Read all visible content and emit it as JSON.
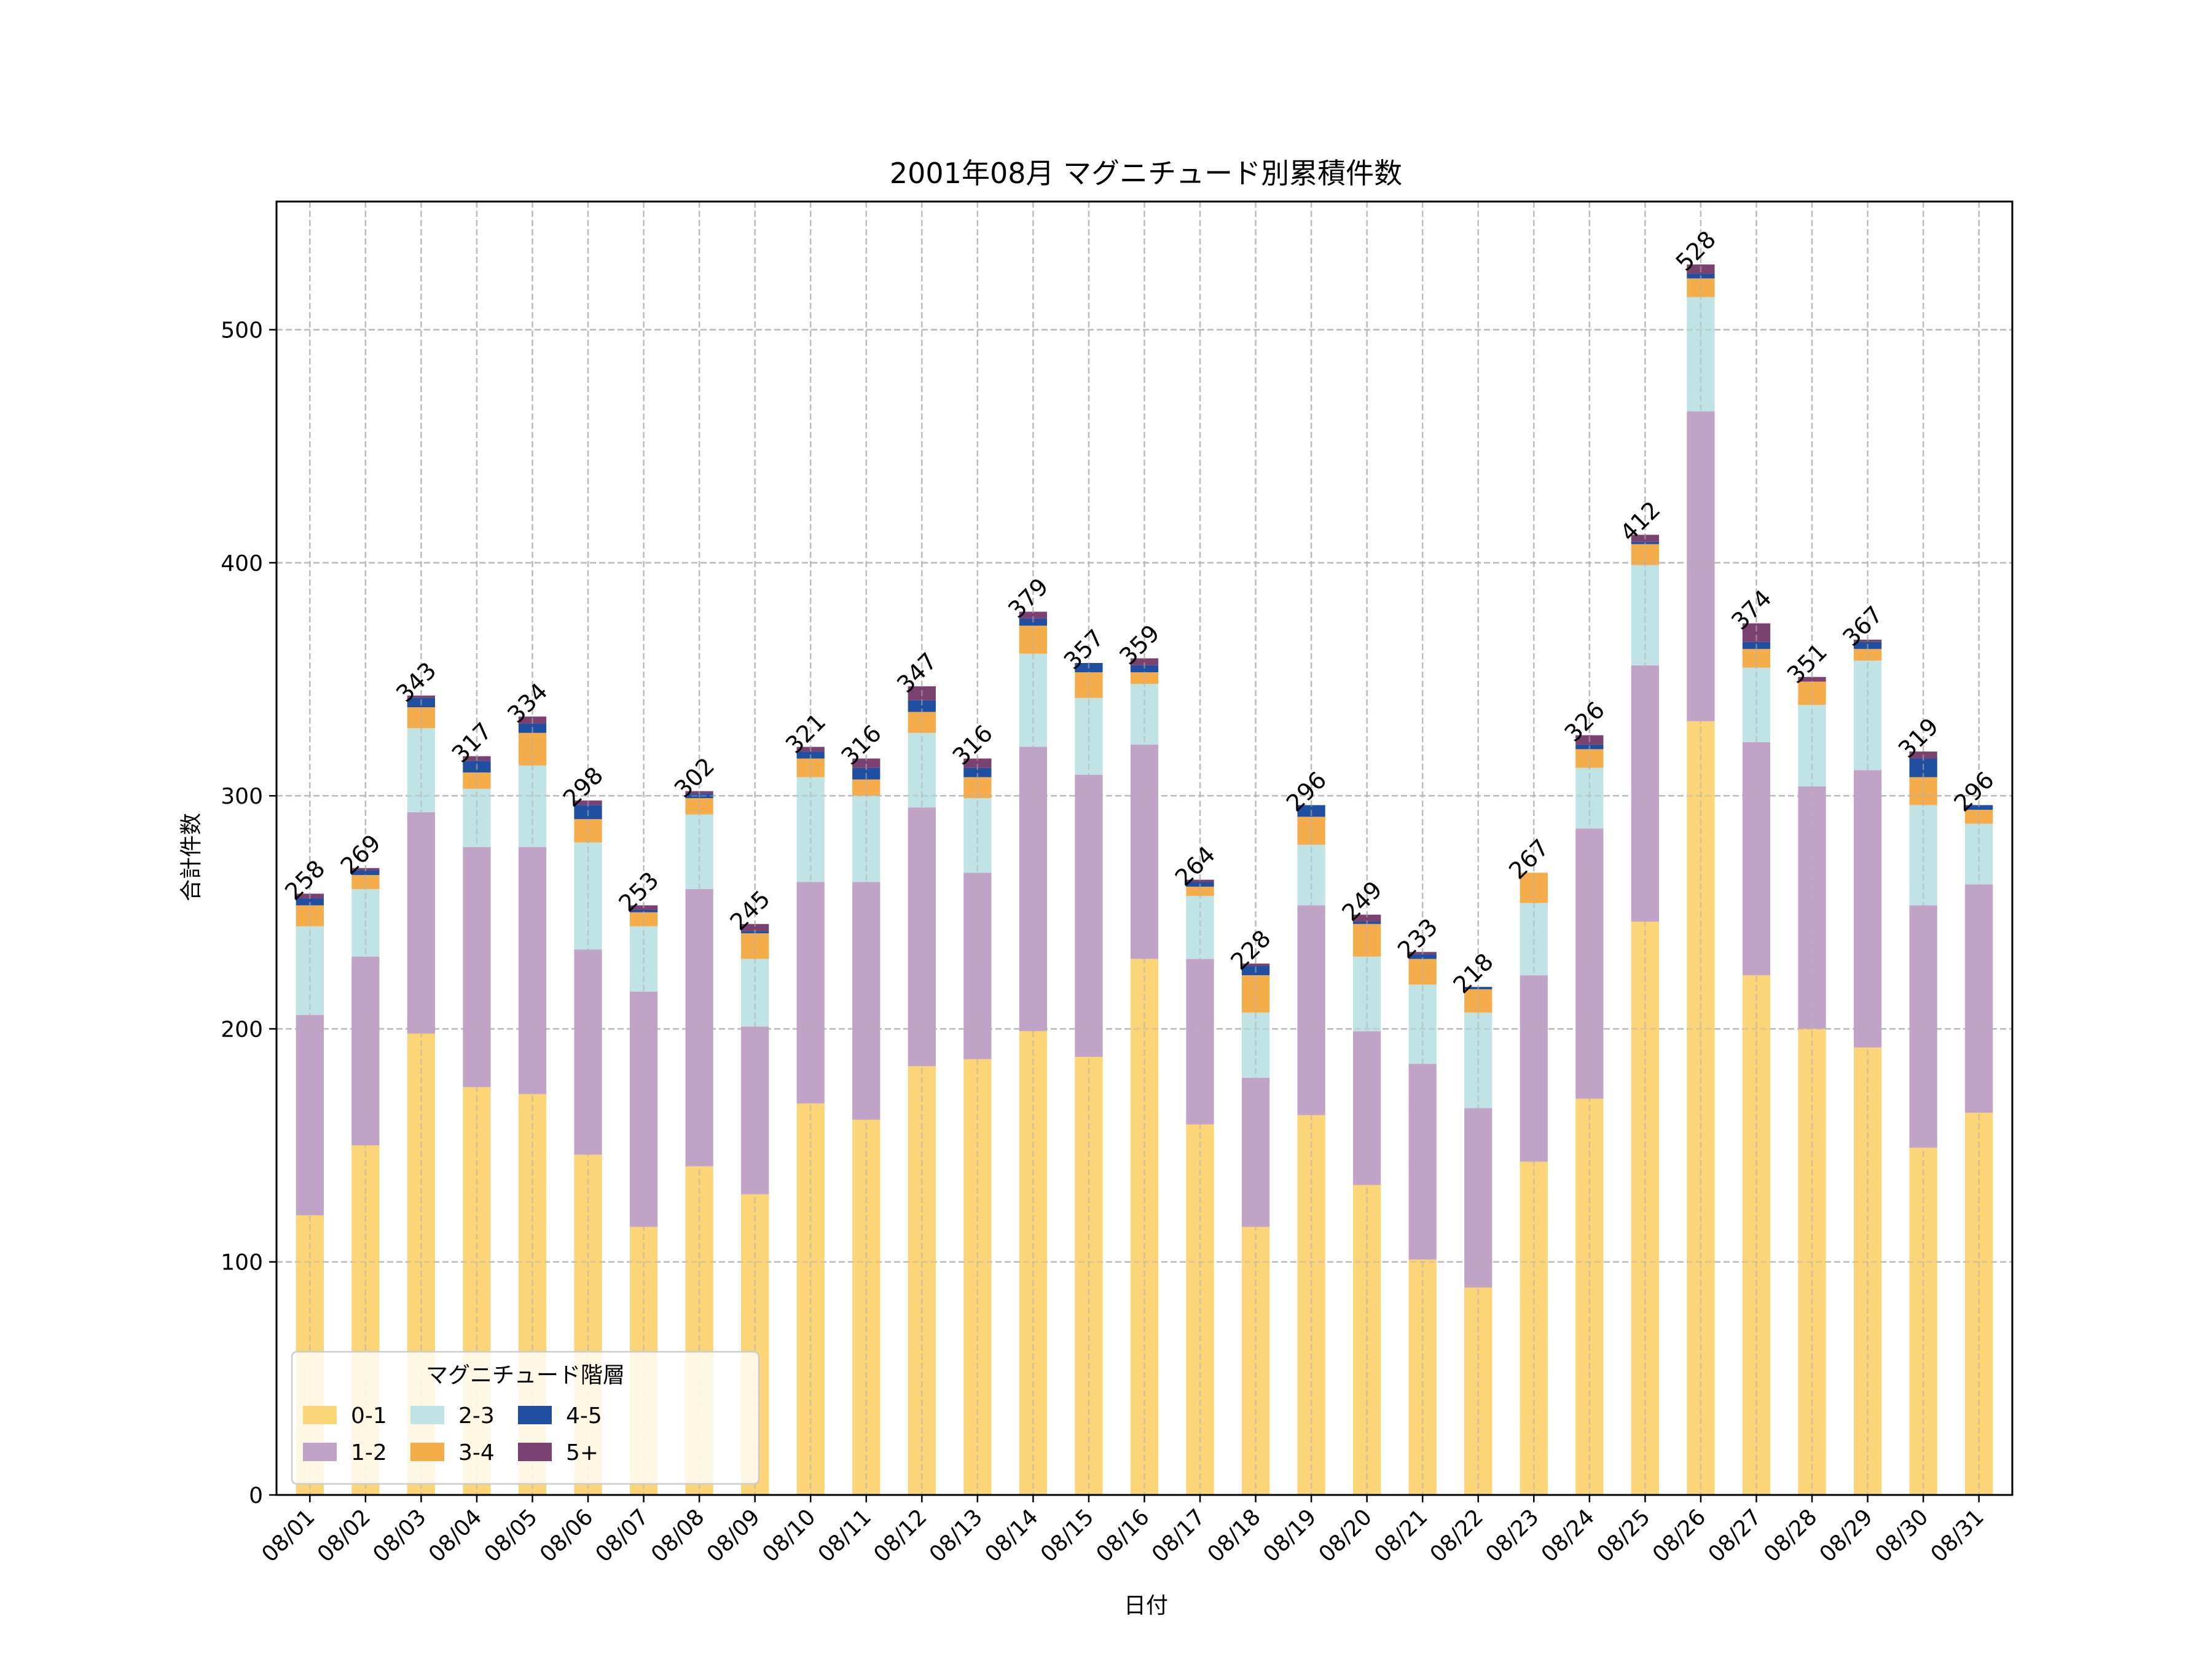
{
  "chart_data": {
    "type": "bar",
    "stacked": true,
    "title": "2001年08月 マグニチュード別累積件数",
    "xlabel": "日付",
    "ylabel": "合計件数",
    "ylim": [
      0,
      555
    ],
    "yticks": [
      0,
      100,
      200,
      300,
      400,
      500
    ],
    "grid": true,
    "legend": {
      "title": "マグニチュード階層",
      "placement": "lower-left",
      "columns": 3
    },
    "categories": [
      "08/01",
      "08/02",
      "08/03",
      "08/04",
      "08/05",
      "08/06",
      "08/07",
      "08/08",
      "08/09",
      "08/10",
      "08/11",
      "08/12",
      "08/13",
      "08/14",
      "08/15",
      "08/16",
      "08/17",
      "08/18",
      "08/19",
      "08/20",
      "08/21",
      "08/22",
      "08/23",
      "08/24",
      "08/25",
      "08/26",
      "08/27",
      "08/28",
      "08/29",
      "08/30",
      "08/31"
    ],
    "series": [
      {
        "name": "0-1",
        "color": "#fbd577",
        "values": [
          120,
          150,
          198,
          175,
          172,
          146,
          115,
          141,
          129,
          168,
          161,
          184,
          187,
          199,
          188,
          230,
          159,
          115,
          163,
          133,
          101,
          89,
          143,
          170,
          246,
          332,
          223,
          200,
          192,
          149,
          164
        ]
      },
      {
        "name": "1-2",
        "color": "#c0a3c7",
        "values": [
          86,
          81,
          95,
          103,
          106,
          88,
          101,
          119,
          72,
          95,
          102,
          111,
          80,
          122,
          121,
          92,
          71,
          64,
          90,
          66,
          84,
          77,
          80,
          116,
          110,
          133,
          100,
          104,
          119,
          104,
          98
        ]
      },
      {
        "name": "2-3",
        "color": "#c0e3e6",
        "values": [
          38,
          29,
          36,
          25,
          35,
          46,
          28,
          32,
          29,
          45,
          37,
          32,
          32,
          40,
          33,
          26,
          27,
          28,
          26,
          32,
          34,
          41,
          31,
          26,
          43,
          49,
          32,
          35,
          47,
          43,
          26
        ]
      },
      {
        "name": "3-4",
        "color": "#f5ac4a",
        "values": [
          9,
          6,
          9,
          7,
          14,
          10,
          6,
          7,
          11,
          8,
          7,
          9,
          9,
          12,
          11,
          5,
          4,
          16,
          12,
          14,
          11,
          10,
          13,
          8,
          9,
          8,
          8,
          10,
          5,
          12,
          6
        ]
      },
      {
        "name": "4-5",
        "color": "#1f4fa0",
        "values": [
          3,
          2,
          4,
          5,
          4,
          6,
          1,
          2,
          1,
          3,
          5,
          5,
          4,
          3,
          4,
          3,
          2,
          4,
          5,
          1,
          2,
          1,
          0,
          2,
          1,
          2,
          3,
          0,
          3,
          8,
          2
        ]
      },
      {
        "name": "5+",
        "color": "#7b4170",
        "values": [
          2,
          1,
          1,
          2,
          3,
          2,
          2,
          1,
          3,
          2,
          4,
          6,
          4,
          3,
          0,
          3,
          1,
          1,
          0,
          3,
          1,
          0,
          0,
          4,
          3,
          4,
          8,
          2,
          1,
          3,
          0
        ]
      }
    ],
    "totals": [
      258,
      269,
      343,
      317,
      334,
      298,
      253,
      302,
      245,
      321,
      316,
      347,
      316,
      379,
      357,
      359,
      264,
      228,
      296,
      249,
      233,
      218,
      267,
      326,
      412,
      528,
      374,
      351,
      367,
      319,
      296
    ]
  }
}
